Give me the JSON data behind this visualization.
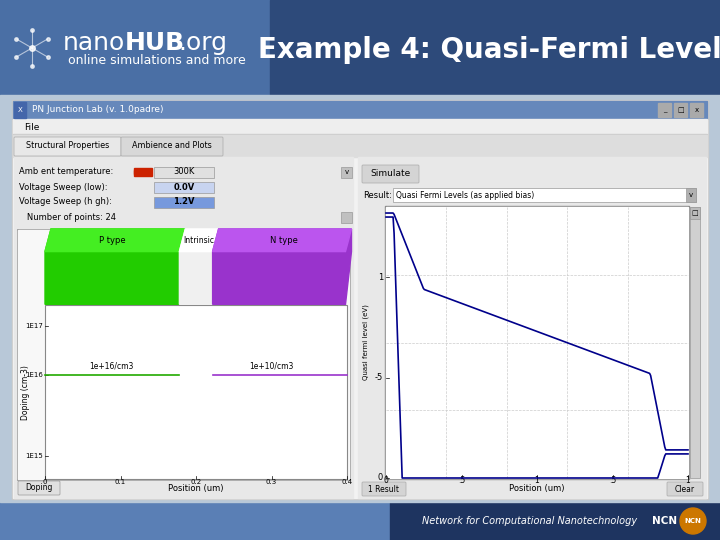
{
  "bg_header_left": "#4a6fa5",
  "bg_header_right": "#2d4a7a",
  "bg_content_color": "#b8c8d8",
  "bg_footer_left": "#6b8fc4",
  "bg_footer_right": "#2d4a7a",
  "title_text": "Example 4: Quasi-Fermi Level",
  "subtitle_text": "online simulations and more",
  "footer_text": "Network for Computational Nanotechnology",
  "ncn_text": "NCN",
  "titlebar_text": "PN Junction Lab (v. 1.0padre)",
  "ptype_color": "#22cc00",
  "ntype_color": "#9933cc",
  "curve_color": "#00008b",
  "window_bg": "#f0f0f0",
  "plot_bg": "#ffffff",
  "input_blue_light": "#c8d4f0",
  "input_blue_dark": "#7799dd"
}
